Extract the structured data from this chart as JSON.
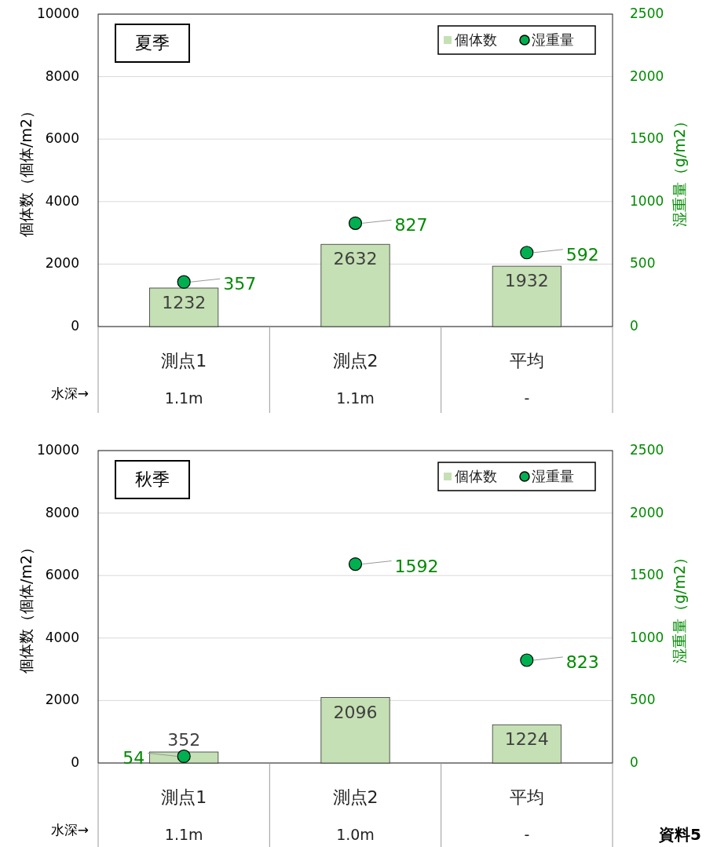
{
  "chart_data": [
    {
      "type": "bar",
      "title": "夏季",
      "categories": [
        "測点1",
        "測点2",
        "平均"
      ],
      "ylabel": "個体数（個体/m2）",
      "y2label": "湿重量（g/m2）",
      "ylim": [
        0,
        10000
      ],
      "yticks": [
        0,
        2000,
        4000,
        6000,
        8000,
        10000
      ],
      "y2lim": [
        0,
        2500
      ],
      "y2ticks": [
        0,
        500,
        1000,
        1500,
        2000,
        2500
      ],
      "grid": "y",
      "legend": "top right",
      "data_labels": true,
      "series": [
        {
          "name": "個体数",
          "type": "bar",
          "color": "#c5e0b4",
          "values": [
            1232,
            2632,
            1932
          ]
        },
        {
          "name": "湿重量",
          "type": "scatter",
          "axis": "y2",
          "color": "#00b050",
          "marker": "circle",
          "values": [
            357,
            827,
            592
          ]
        }
      ],
      "annotations": [
        "水深→",
        "1.1m",
        "1.1m",
        "-"
      ]
    },
    {
      "type": "bar",
      "title": "秋季",
      "categories": [
        "測点1",
        "測点2",
        "平均"
      ],
      "ylabel": "個体数（個体/m2）",
      "y2label": "湿重量（g/m2）",
      "ylim": [
        0,
        10000
      ],
      "yticks": [
        0,
        2000,
        4000,
        6000,
        8000,
        10000
      ],
      "y2lim": [
        0,
        2500
      ],
      "y2ticks": [
        0,
        500,
        1000,
        1500,
        2000,
        2500
      ],
      "grid": "y",
      "legend": "top right",
      "data_labels": true,
      "series": [
        {
          "name": "個体数",
          "type": "bar",
          "color": "#c5e0b4",
          "values": [
            352,
            2096,
            1224
          ]
        },
        {
          "name": "湿重量",
          "type": "scatter",
          "axis": "y2",
          "color": "#00b050",
          "marker": "circle",
          "values": [
            54,
            1592,
            823
          ]
        }
      ],
      "annotations": [
        "水深→",
        "1.1m",
        "1.0m",
        "-",
        "資料5"
      ]
    }
  ]
}
